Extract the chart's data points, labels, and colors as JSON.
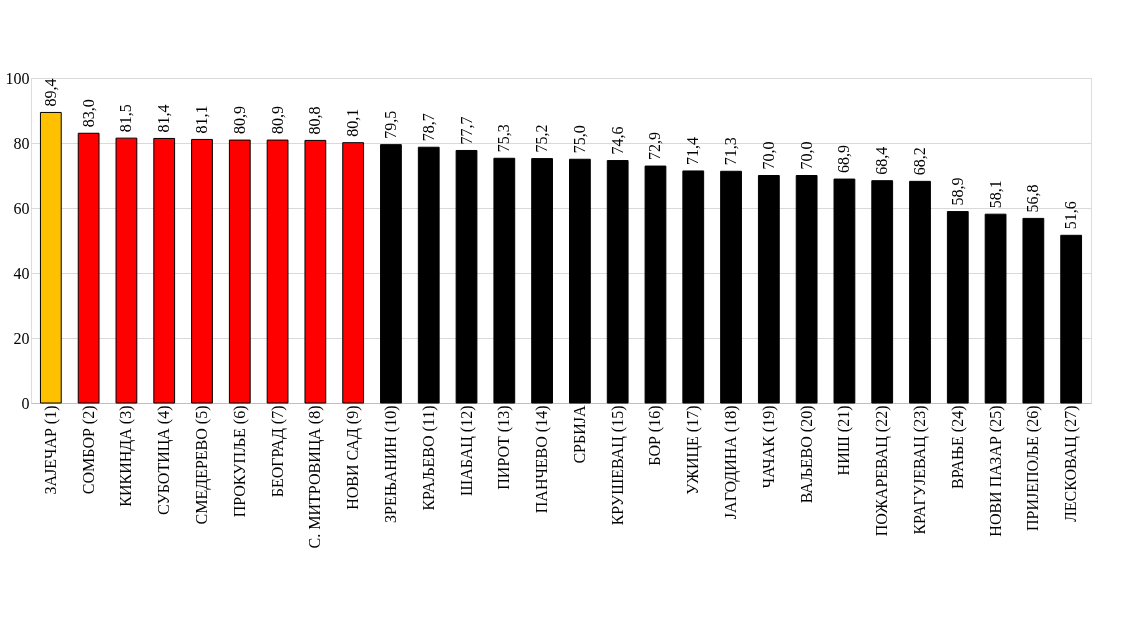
{
  "chart_data": {
    "type": "bar",
    "categories": [
      "ЗАЈЕЧАР (1)",
      "СОМБОР (2)",
      "КИКИНДА (3)",
      "СУБОТИЦА (4)",
      "СМЕДЕРЕВО (5)",
      "ПРОКУПЉЕ (6)",
      "БЕОГРАД (7)",
      "С. МИТРОВИЦА (8)",
      "НОВИ САД (9)",
      "ЗРЕЊАНИН (10)",
      "КРАЉЕВО (11)",
      "ШАБАЦ (12)",
      "ПИРОТ (13)",
      "ПАНЧЕВО (14)",
      "СРБИЈА",
      "КРУШЕВАЦ (15)",
      "БОР (16)",
      "УЖИЦЕ (17)",
      "ЈАГОДИНА (18)",
      "ЧАЧАК (19)",
      "ВАЉЕВО (20)",
      "НИШ (21)",
      "ПОЖАРЕВАЦ (22)",
      "КРАГУЈЕВАЦ (23)",
      "ВРАЊЕ (24)",
      "НОВИ ПАЗАР (25)",
      "ПРИЈЕПОЉЕ (26)",
      "ЛЕСКОВАЦ (27)"
    ],
    "values": [
      89.4,
      83.0,
      81.5,
      81.4,
      81.1,
      80.9,
      80.9,
      80.8,
      80.1,
      79.5,
      78.7,
      77.7,
      75.3,
      75.2,
      75.0,
      74.6,
      72.9,
      71.4,
      71.3,
      70.0,
      70.0,
      68.9,
      68.4,
      68.2,
      58.9,
      58.1,
      56.8,
      51.6
    ],
    "value_labels": [
      "89,4",
      "83,0",
      "81,5",
      "81,4",
      "81,1",
      "80,9",
      "80,9",
      "80,8",
      "80,1",
      "79,5",
      "78,7",
      "77,7",
      "75,3",
      "75,2",
      "75,0",
      "74,6",
      "72,9",
      "71,4",
      "71,3",
      "70,0",
      "70,0",
      "68,9",
      "68,4",
      "68,2",
      "58,9",
      "58,1",
      "56,8",
      "51,6"
    ],
    "colors": [
      "#ffc000",
      "#ff0000",
      "#ff0000",
      "#ff0000",
      "#ff0000",
      "#ff0000",
      "#ff0000",
      "#ff0000",
      "#ff0000",
      "#000000",
      "#000000",
      "#000000",
      "#000000",
      "#000000",
      "#000000",
      "#000000",
      "#000000",
      "#000000",
      "#000000",
      "#000000",
      "#000000",
      "#000000",
      "#000000",
      "#000000",
      "#000000",
      "#000000",
      "#000000",
      "#000000"
    ],
    "ylim": [
      0,
      100
    ],
    "yticks": [
      0,
      20,
      40,
      60,
      80,
      100
    ],
    "grid": "y"
  }
}
